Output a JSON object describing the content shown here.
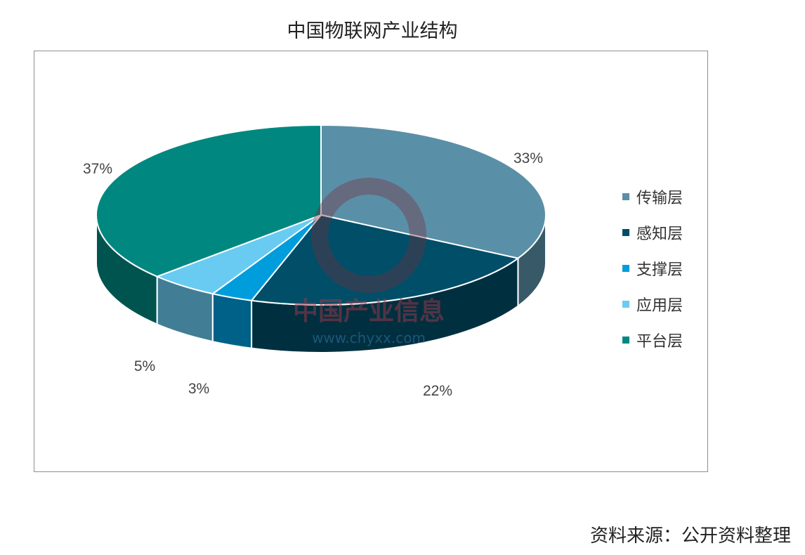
{
  "chart_data": {
    "type": "pie",
    "title": "中国物联网产业结构",
    "categories": [
      "传输层",
      "感知层",
      "支撑层",
      "应用层",
      "平台层"
    ],
    "values": [
      33,
      22,
      3,
      5,
      37
    ],
    "value_labels": [
      "33%",
      "22%",
      "3%",
      "5%",
      "37%"
    ],
    "colors": [
      "#5a8fa8",
      "#004e68",
      "#009ddc",
      "#69cbf2",
      "#008880"
    ],
    "legend_position": "right"
  },
  "watermark": {
    "text": "中国产业信息",
    "url": "www.chyxx.com"
  },
  "source": "资料来源：公开资料整理"
}
